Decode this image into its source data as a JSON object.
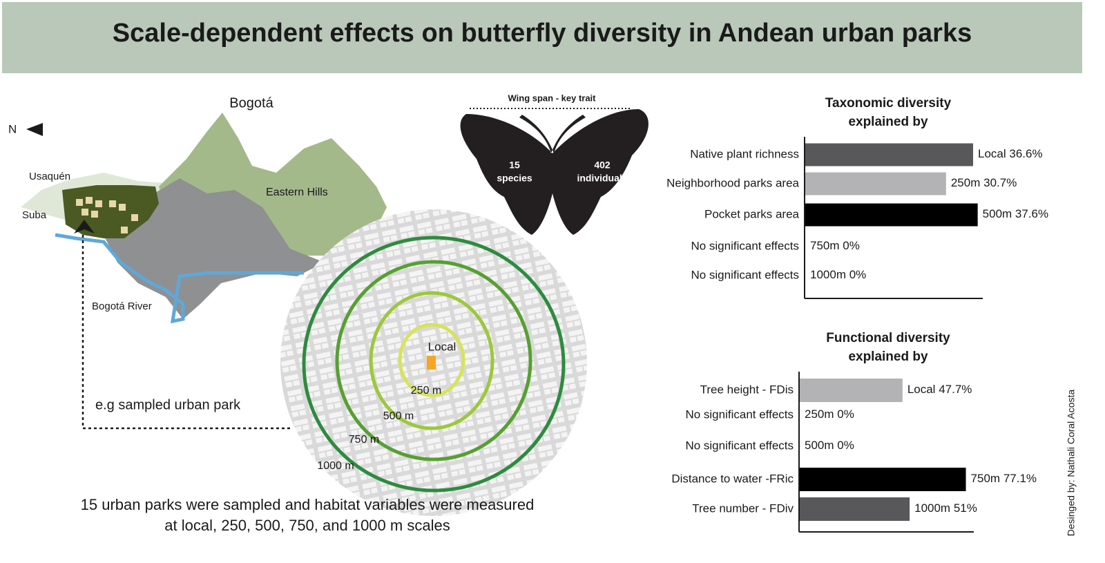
{
  "header": {
    "title": "Scale-dependent effects on butterfly diversity in Andean urban parks"
  },
  "map": {
    "city": "Bogotá",
    "north": "N",
    "usaquen": "Usaquén",
    "suba": "Suba",
    "hills": "Eastern Hills",
    "river": "Bogotá River",
    "park_note": "e.g sampled urban park"
  },
  "buffers": {
    "labels": [
      "Local",
      "250 m",
      "500 m",
      "750 m",
      "1000 m"
    ]
  },
  "butterfly": {
    "trait": "Wing span - key trait",
    "species": [
      "15",
      "species"
    ],
    "individuals": [
      "402",
      "individuals"
    ]
  },
  "caption": [
    "15 urban parks were sampled and habitat variables were measured",
    "at local, 250, 500, 750, and 1000 m scales"
  ],
  "credit": "Desinged by: Nathali Coral Acosta",
  "chart_data": [
    {
      "type": "bar",
      "orientation": "horizontal",
      "title": [
        "Taxonomic diversity",
        "explained by"
      ],
      "categories": [
        "Native plant richness",
        "Neighborhood parks area",
        "Pocket parks area",
        "No significant effects",
        "No significant effects"
      ],
      "scales": [
        "Local",
        "250m",
        "500m",
        "750m",
        "1000m"
      ],
      "values": [
        36.6,
        30.7,
        37.6,
        0,
        0
      ],
      "value_labels": [
        "36.6%",
        "30.7%",
        "37.6%",
        "0%",
        "0%"
      ],
      "colors": [
        "#58585a",
        "#b3b3b5",
        "#000000",
        null,
        null
      ]
    },
    {
      "type": "bar",
      "orientation": "horizontal",
      "title": [
        "Functional diversity",
        "explained by"
      ],
      "categories": [
        "Tree height - FDis",
        "No significant effects",
        "No significant effects",
        "Distance to water -FRic",
        "Tree number - FDiv"
      ],
      "scales": [
        "Local",
        "250m",
        "500m",
        "750m",
        "1000m"
      ],
      "values": [
        47.7,
        0,
        0,
        77.1,
        51
      ],
      "value_labels": [
        "47.7%",
        "0%",
        "0%",
        "77.1%",
        "51%"
      ],
      "colors": [
        "#b3b3b5",
        null,
        null,
        "#000000",
        "#58585a"
      ]
    }
  ]
}
